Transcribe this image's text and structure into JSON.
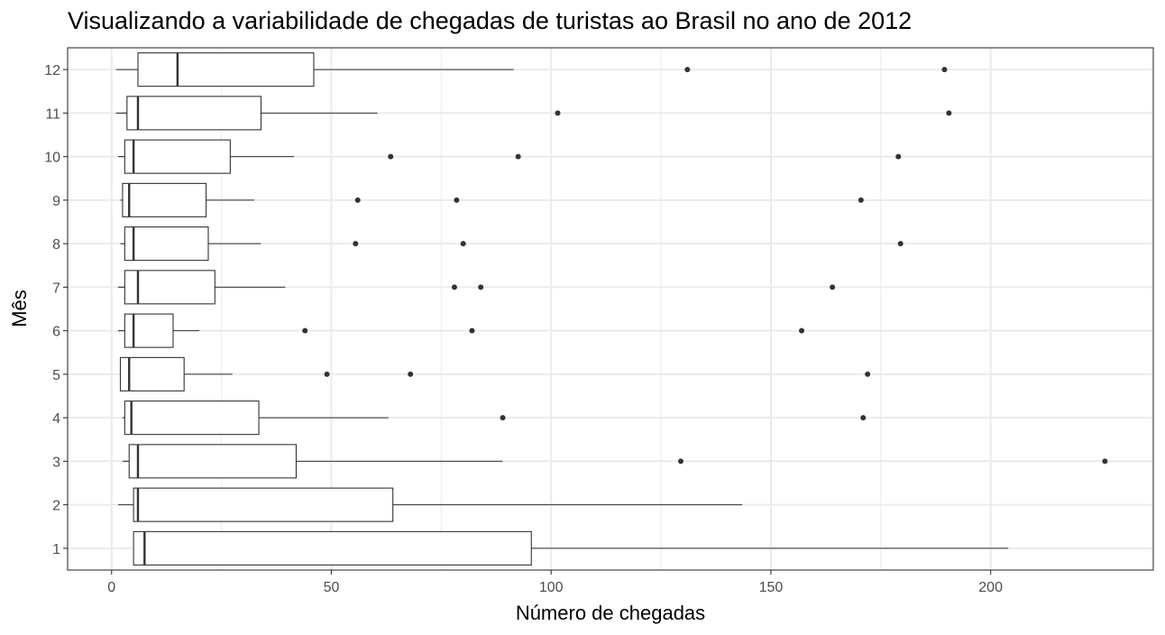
{
  "chart_data": {
    "type": "boxplot",
    "orientation": "horizontal",
    "title": "Visualizando a variabilidade de chegadas de turistas ao Brasil no ano de 2012",
    "xlabel": "Número de chegadas",
    "ylabel": "Mês",
    "xlim": [
      -10,
      237
    ],
    "xticks": [
      0,
      50,
      100,
      150,
      200
    ],
    "categories": [
      "1",
      "2",
      "3",
      "4",
      "5",
      "6",
      "7",
      "8",
      "9",
      "10",
      "11",
      "12"
    ],
    "grid": true,
    "legend": "none",
    "boxes": [
      {
        "category": "1",
        "whisker_low": 5,
        "q1": 5,
        "median": 7.5,
        "q3": 95.5,
        "whisker_high": 204,
        "outliers": []
      },
      {
        "category": "2",
        "whisker_low": 1.5,
        "q1": 5,
        "median": 6,
        "q3": 64,
        "whisker_high": 143.5,
        "outliers": []
      },
      {
        "category": "3",
        "whisker_low": 2.5,
        "q1": 4,
        "median": 6,
        "q3": 42,
        "whisker_high": 89,
        "outliers": [
          129.5,
          226
        ]
      },
      {
        "category": "4",
        "whisker_low": 2.5,
        "q1": 3,
        "median": 4.5,
        "q3": 33.5,
        "whisker_high": 63,
        "outliers": [
          89,
          171
        ]
      },
      {
        "category": "5",
        "whisker_low": 2,
        "q1": 2,
        "median": 4,
        "q3": 16.5,
        "whisker_high": 27.5,
        "outliers": [
          49,
          68,
          172
        ]
      },
      {
        "category": "6",
        "whisker_low": 1.5,
        "q1": 3,
        "median": 5,
        "q3": 14,
        "whisker_high": 20,
        "outliers": [
          44,
          82,
          157
        ]
      },
      {
        "category": "7",
        "whisker_low": 1.5,
        "q1": 3,
        "median": 6,
        "q3": 23.5,
        "whisker_high": 39.5,
        "outliers": [
          78,
          84,
          164
        ]
      },
      {
        "category": "8",
        "whisker_low": 2,
        "q1": 3,
        "median": 5,
        "q3": 22,
        "whisker_high": 34,
        "outliers": [
          55.5,
          80,
          179.5
        ]
      },
      {
        "category": "9",
        "whisker_low": 2,
        "q1": 2.5,
        "median": 4,
        "q3": 21.5,
        "whisker_high": 32.5,
        "outliers": [
          56,
          78.5,
          170.5
        ]
      },
      {
        "category": "10",
        "whisker_low": 1.5,
        "q1": 3,
        "median": 5,
        "q3": 27,
        "whisker_high": 41.5,
        "outliers": [
          63.5,
          92.5,
          179
        ]
      },
      {
        "category": "11",
        "whisker_low": 1,
        "q1": 3.5,
        "median": 6,
        "q3": 34,
        "whisker_high": 60.5,
        "outliers": [
          101.5,
          190.5
        ]
      },
      {
        "category": "12",
        "whisker_low": 1,
        "q1": 6,
        "median": 15,
        "q3": 46,
        "whisker_high": 91.5,
        "outliers": [
          131,
          189.5
        ]
      }
    ]
  }
}
